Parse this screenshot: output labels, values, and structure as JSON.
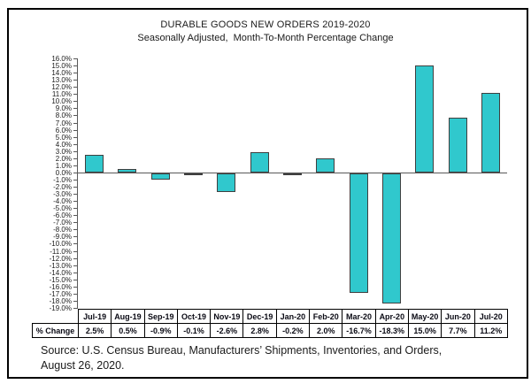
{
  "window": {
    "background": "#ffffff",
    "frame_border_color": "#000000"
  },
  "chart_data": {
    "type": "bar",
    "title": "DURABLE GOODS NEW ORDERS 2019-2020",
    "subtitle": "Seasonally Adjusted,  Month-To-Month Percentage Change",
    "categories": [
      "Jul-19",
      "Aug-19",
      "Sep-19",
      "Oct-19",
      "Nov-19",
      "Dec-19",
      "Jan-20",
      "Feb-20",
      "Mar-20",
      "Apr-20",
      "May-20",
      "Jun-20",
      "Jul-20"
    ],
    "values": [
      2.5,
      0.5,
      -0.9,
      -0.1,
      -2.6,
      2.8,
      -0.2,
      2.0,
      -16.7,
      -18.3,
      15.0,
      7.7,
      11.2
    ],
    "value_labels": [
      "2.5%",
      "0.5%",
      "-0.9%",
      "-0.1%",
      "-2.6%",
      "2.8%",
      "-0.2%",
      "2.0%",
      "-16.7%",
      "-18.3%",
      "15.0%",
      "7.7%",
      "11.2%"
    ],
    "row_header": "% Change",
    "xlabel": "",
    "ylabel": "",
    "ylim": [
      -19,
      16
    ],
    "ytick_step": 1,
    "ytick_format": "0.0%",
    "grid": false,
    "legend_position": "none",
    "bar_color": "#30c8cd",
    "bar_border_color": "#3f3f3f",
    "axis_color": "#595959"
  },
  "source": {
    "line1": "Source: U.S. Census Bureau, Manufacturers’ Shipments, Inventories, and Orders,",
    "line2": "August 26, 2020."
  }
}
